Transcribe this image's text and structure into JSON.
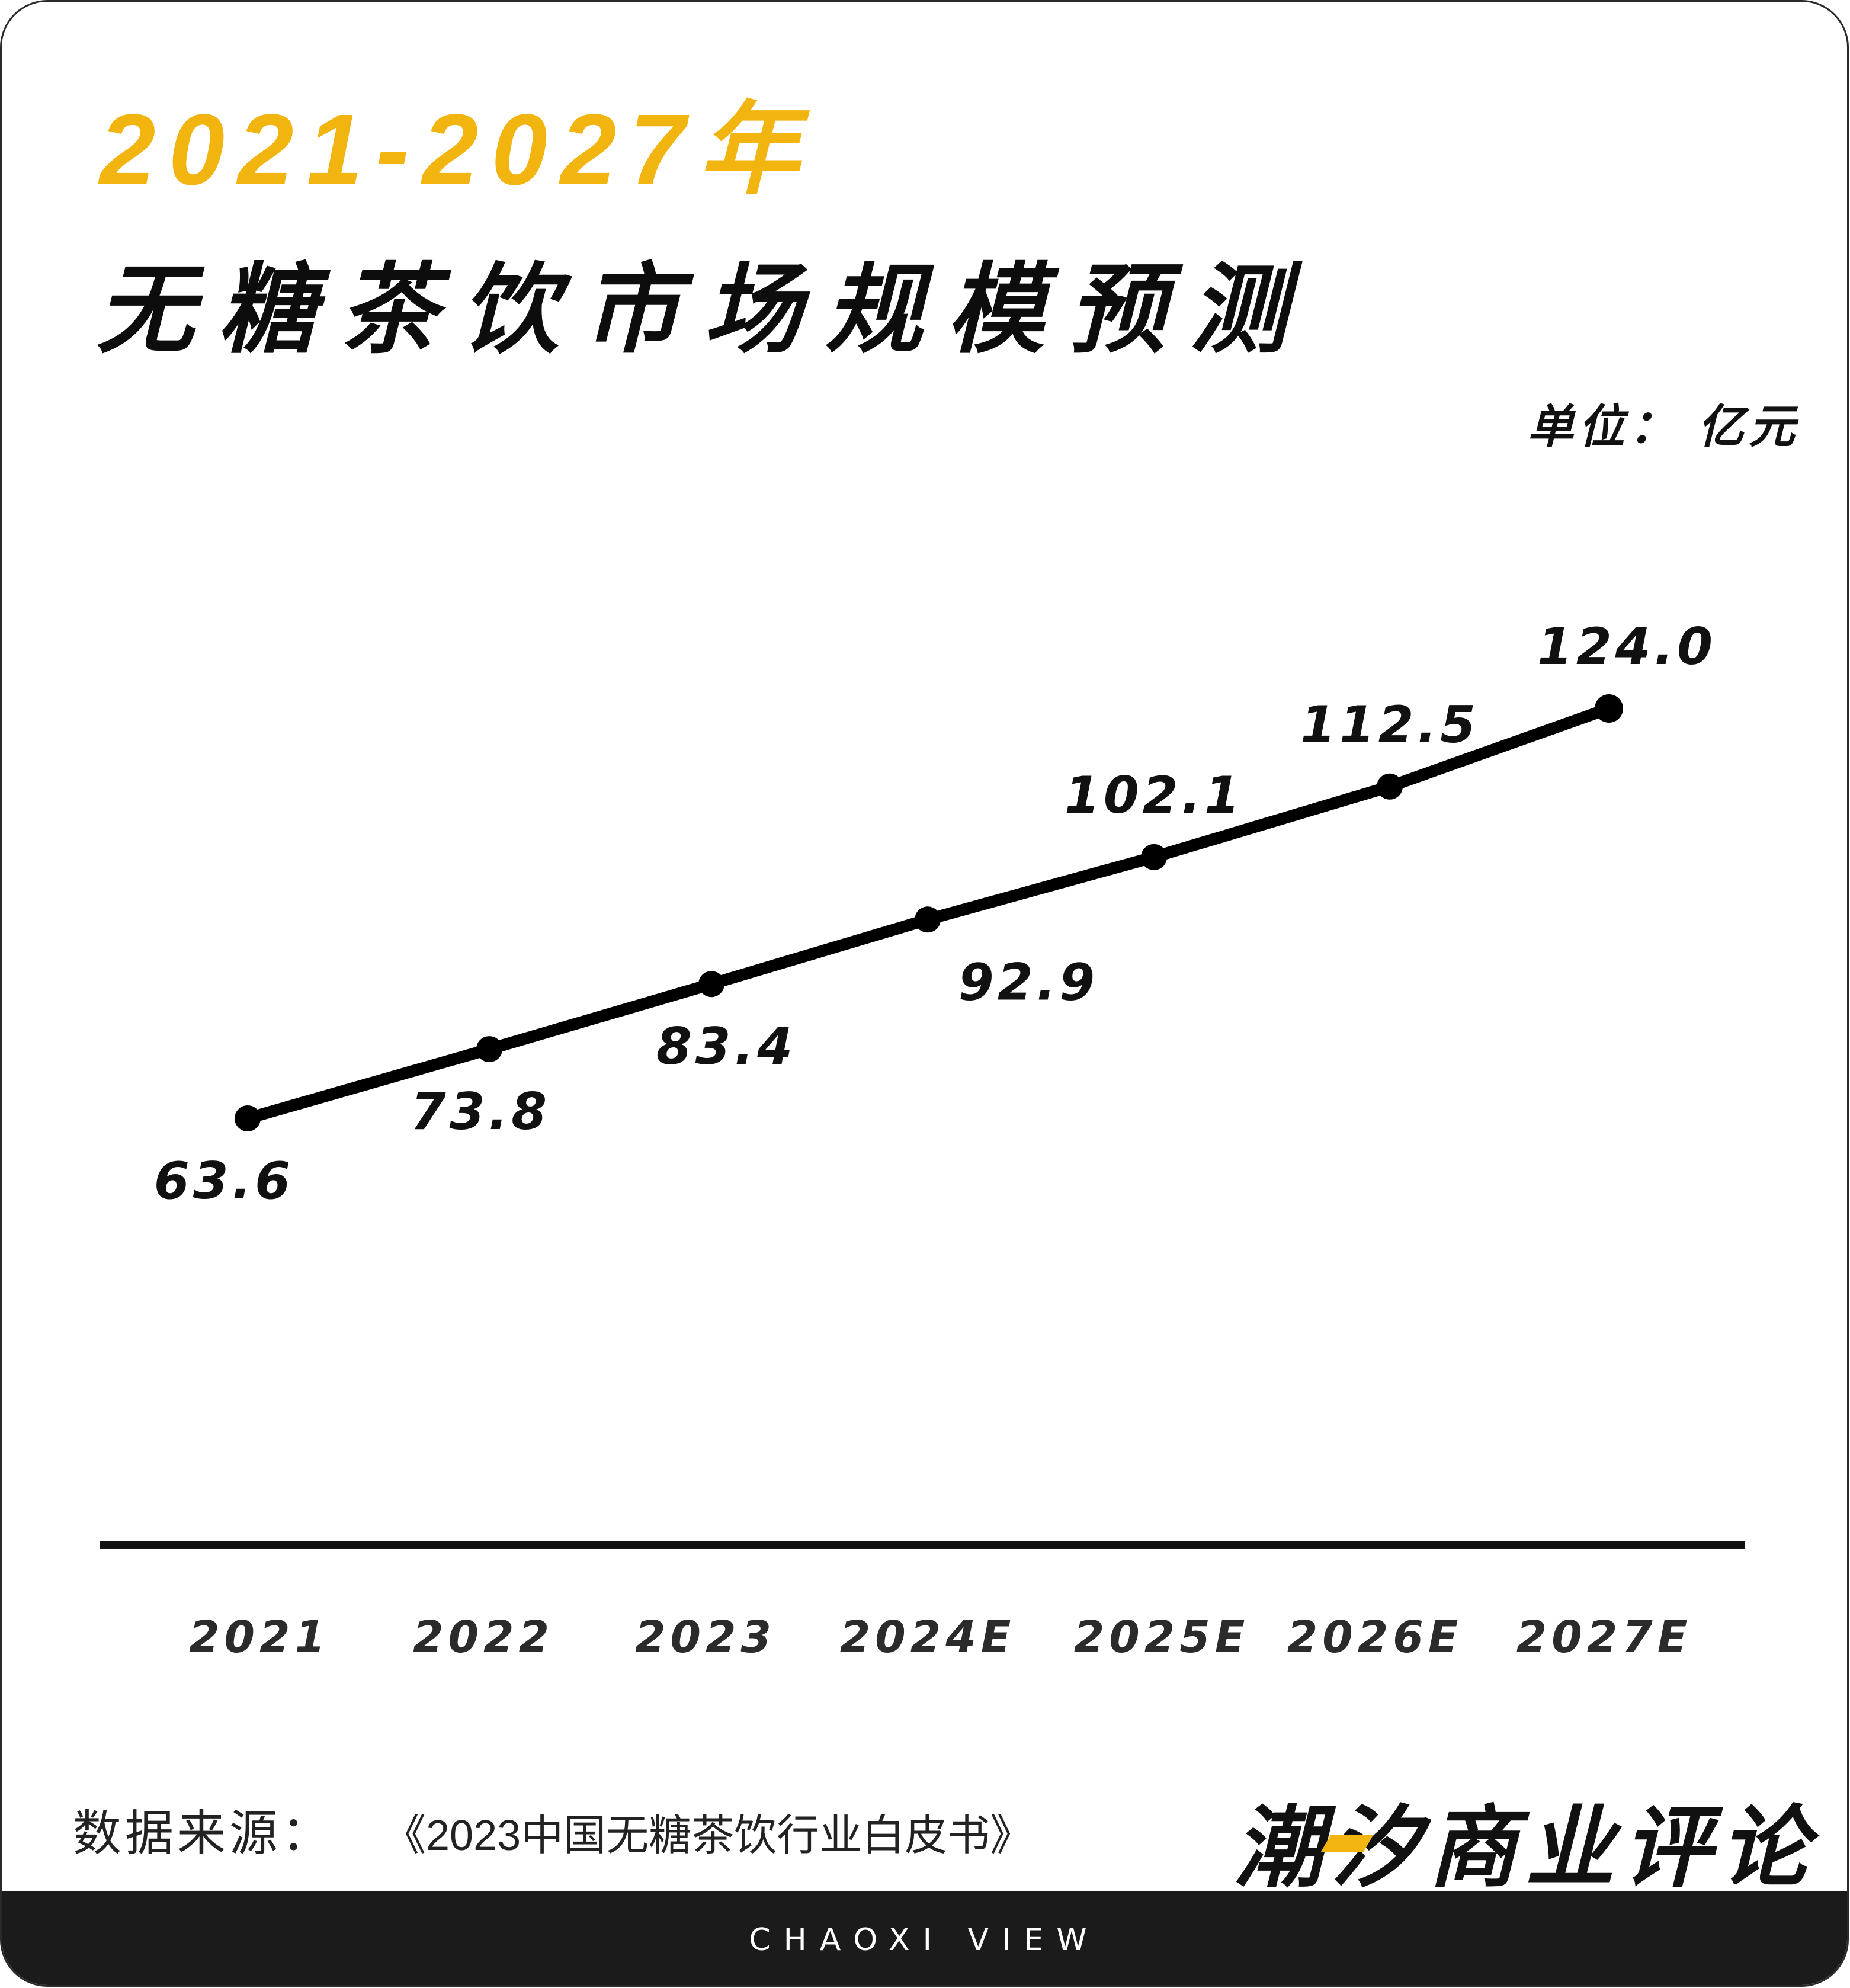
{
  "title": {
    "years": "2021-2027年",
    "main": "无糖茶饮市场规模预测"
  },
  "unit": "单位： 亿元",
  "chart_data": {
    "type": "line",
    "categories": [
      "2021",
      "2022",
      "2023",
      "2024E",
      "2025E",
      "2026E",
      "2027E"
    ],
    "series": [
      {
        "values": [
          63.6,
          73.8,
          83.4,
          92.9,
          102.1,
          112.5,
          124.0
        ]
      }
    ],
    "value_labels": [
      "63.6",
      "73.8",
      "83.4",
      "92.9",
      "102.1",
      "112.5",
      "124.0"
    ],
    "ylim": [
      0,
      135
    ],
    "grid": false,
    "legend": "none",
    "line_color": "#000000"
  },
  "source": {
    "label": "数据来源：",
    "title": "《2023中国无糖茶饮行业白皮书》"
  },
  "brand": {
    "name": "潮汐商业评论",
    "tagline": "CHAOXI VIEW"
  },
  "colors": {
    "accent": "#f2b510",
    "text": "#111111",
    "footer": "#1b1b1b"
  }
}
